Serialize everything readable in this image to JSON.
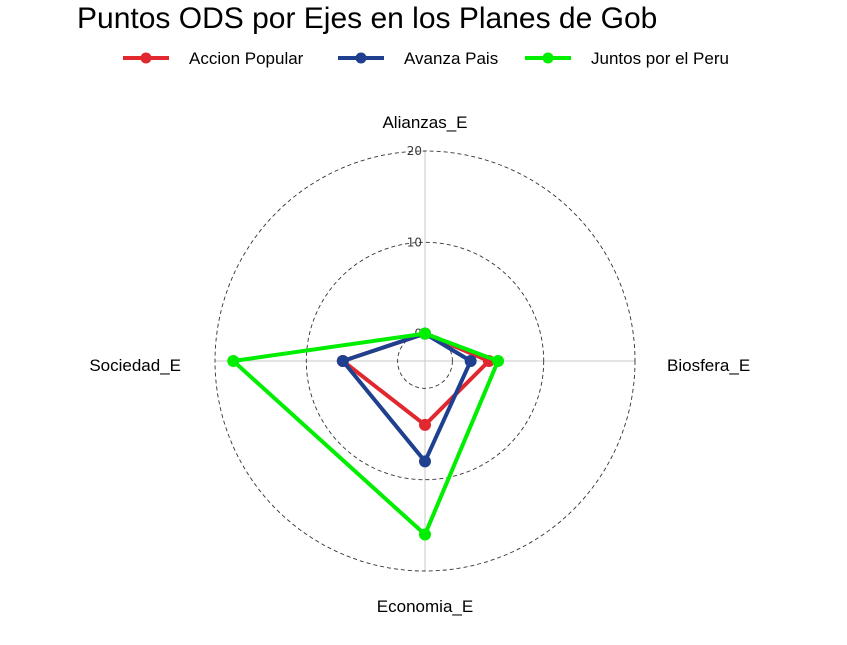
{
  "chart_data": {
    "type": "radar",
    "title": "Puntos ODS por Ejes en los Planes de Gob",
    "axes": [
      "Alianzas_E",
      "Biosfera_E",
      "Economia_E",
      "Sociedad_E"
    ],
    "radial_range": [
      -3,
      20
    ],
    "radial_ticks": [
      "0",
      "10",
      "20"
    ],
    "grid": true,
    "legend_position": "top",
    "series": [
      {
        "name": "Accion Popular",
        "color": "#e0282e",
        "values": [
          0,
          4,
          4,
          6
        ]
      },
      {
        "name": "Avanza Pais",
        "color": "#1f3f8f",
        "values": [
          0,
          2,
          8,
          6
        ]
      },
      {
        "name": "Juntos por el Peru",
        "color": "#00ee00",
        "values": [
          0,
          5,
          16,
          18
        ]
      }
    ]
  }
}
